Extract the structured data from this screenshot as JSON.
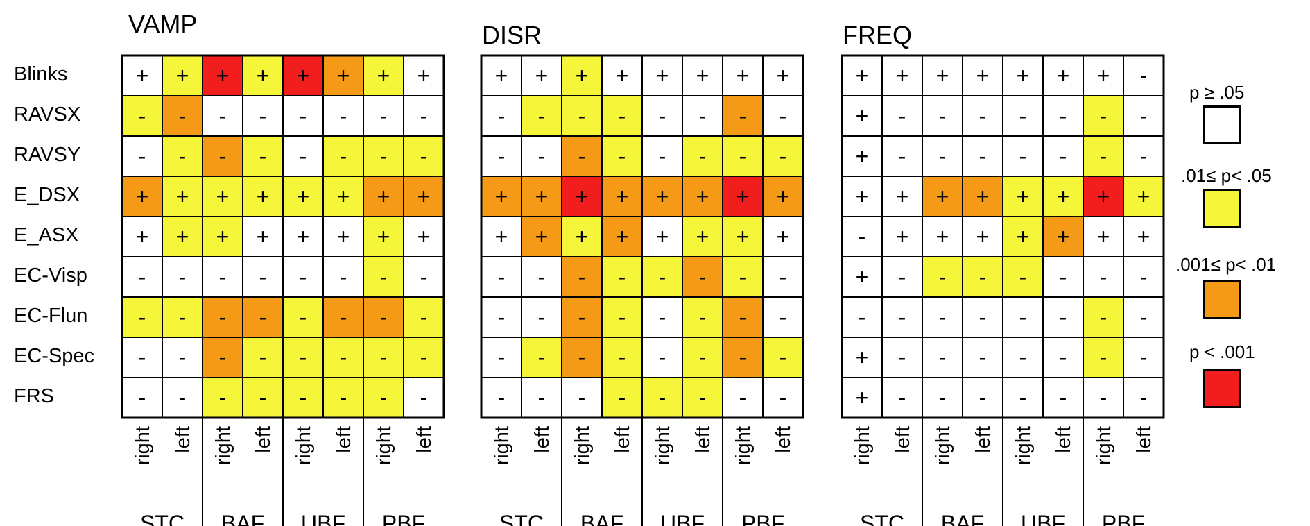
{
  "chart_data": {
    "type": "heatmap",
    "rows": [
      "Blinks",
      "RAVSX",
      "RAVSY",
      "E_DSX",
      "E_ASX",
      "EC-Visp",
      "EC-Flun",
      "EC-Spec",
      "FRS"
    ],
    "columns": [
      "right",
      "left",
      "right",
      "left",
      "right",
      "left",
      "right",
      "left"
    ],
    "column_groups": [
      "STC",
      "BAF",
      "UBF",
      "PBF"
    ],
    "significance_levels": [
      "p ≥ .05",
      ".01≤ p< .05",
      ".001≤ p< .01",
      "p < .001"
    ],
    "colors": [
      "#ffffff",
      "#f5f53a",
      "#f49a16",
      "#f21d1d"
    ],
    "panels": [
      {
        "title": "VAMP",
        "signs": [
          [
            "+",
            "+",
            "+",
            "+",
            "+",
            "+",
            "+",
            "+"
          ],
          [
            "-",
            "-",
            "-",
            "-",
            "-",
            "-",
            "-",
            "-"
          ],
          [
            "-",
            "-",
            "-",
            "-",
            "-",
            "-",
            "-",
            "-"
          ],
          [
            "+",
            "+",
            "+",
            "+",
            "+",
            "+",
            "+",
            "+"
          ],
          [
            "+",
            "+",
            "+",
            "+",
            "+",
            "+",
            "+",
            "+"
          ],
          [
            "-",
            "-",
            "-",
            "-",
            "-",
            "-",
            "-",
            "-"
          ],
          [
            "-",
            "-",
            "-",
            "-",
            "-",
            "-",
            "-",
            "-"
          ],
          [
            "-",
            "-",
            "-",
            "-",
            "-",
            "-",
            "-",
            "-"
          ],
          [
            "-",
            "-",
            "-",
            "-",
            "-",
            "-",
            "-",
            "-"
          ]
        ],
        "levels": [
          [
            0,
            1,
            3,
            1,
            3,
            2,
            1,
            0
          ],
          [
            1,
            2,
            0,
            0,
            0,
            0,
            0,
            0
          ],
          [
            0,
            1,
            2,
            1,
            0,
            1,
            1,
            1
          ],
          [
            2,
            1,
            1,
            1,
            1,
            1,
            2,
            2
          ],
          [
            0,
            1,
            1,
            0,
            0,
            0,
            1,
            0
          ],
          [
            0,
            0,
            0,
            0,
            0,
            0,
            1,
            0
          ],
          [
            1,
            1,
            2,
            2,
            1,
            2,
            2,
            1
          ],
          [
            0,
            0,
            2,
            1,
            1,
            1,
            1,
            1
          ],
          [
            0,
            0,
            1,
            1,
            1,
            1,
            1,
            0
          ]
        ]
      },
      {
        "title": "DISR",
        "signs": [
          [
            "+",
            "+",
            "+",
            "+",
            "+",
            "+",
            "+",
            "+"
          ],
          [
            "-",
            "-",
            "-",
            "-",
            "-",
            "-",
            "-",
            "-"
          ],
          [
            "-",
            "-",
            "-",
            "-",
            "-",
            "-",
            "-",
            "-"
          ],
          [
            "+",
            "+",
            "+",
            "+",
            "+",
            "+",
            "+",
            "+"
          ],
          [
            "+",
            "+",
            "+",
            "+",
            "+",
            "+",
            "+",
            "+"
          ],
          [
            "-",
            "-",
            "-",
            "-",
            "-",
            "-",
            "-",
            "-"
          ],
          [
            "-",
            "-",
            "-",
            "-",
            "-",
            "-",
            "-",
            "-"
          ],
          [
            "-",
            "-",
            "-",
            "-",
            "-",
            "-",
            "-",
            "-"
          ],
          [
            "-",
            "-",
            "-",
            "-",
            "-",
            "-",
            "-",
            "-"
          ]
        ],
        "levels": [
          [
            0,
            0,
            1,
            0,
            0,
            0,
            0,
            0
          ],
          [
            0,
            1,
            1,
            1,
            0,
            0,
            2,
            0
          ],
          [
            0,
            0,
            2,
            1,
            0,
            1,
            1,
            1
          ],
          [
            2,
            2,
            3,
            2,
            2,
            2,
            3,
            2
          ],
          [
            0,
            2,
            1,
            2,
            0,
            1,
            1,
            0
          ],
          [
            0,
            0,
            2,
            1,
            1,
            2,
            1,
            0
          ],
          [
            0,
            0,
            2,
            1,
            0,
            1,
            2,
            0
          ],
          [
            0,
            1,
            2,
            1,
            0,
            1,
            2,
            1
          ],
          [
            0,
            0,
            0,
            1,
            1,
            1,
            0,
            0
          ]
        ]
      },
      {
        "title": "FREQ",
        "signs": [
          [
            "+",
            "+",
            "+",
            "+",
            "+",
            "+",
            "+",
            "-"
          ],
          [
            "+",
            "-",
            "-",
            "-",
            "-",
            "-",
            "-",
            "-"
          ],
          [
            "+",
            "-",
            "-",
            "-",
            "-",
            "-",
            "-",
            "-"
          ],
          [
            "+",
            "+",
            "+",
            "+",
            "+",
            "+",
            "+",
            "+"
          ],
          [
            "-",
            "+",
            "+",
            "+",
            "+",
            "+",
            "+",
            "+"
          ],
          [
            "+",
            "-",
            "-",
            "-",
            "-",
            "-",
            "-",
            "-"
          ],
          [
            "-",
            "-",
            "-",
            "-",
            "-",
            "-",
            "-",
            "-"
          ],
          [
            "+",
            "-",
            "-",
            "-",
            "-",
            "-",
            "-",
            "-"
          ],
          [
            "+",
            "-",
            "-",
            "-",
            "-",
            "-",
            "-",
            "-"
          ]
        ],
        "levels": [
          [
            0,
            0,
            0,
            0,
            0,
            0,
            0,
            0
          ],
          [
            0,
            0,
            0,
            0,
            0,
            0,
            1,
            0
          ],
          [
            0,
            0,
            0,
            0,
            0,
            0,
            1,
            0
          ],
          [
            0,
            0,
            2,
            2,
            1,
            1,
            3,
            1
          ],
          [
            0,
            0,
            0,
            0,
            1,
            2,
            0,
            0
          ],
          [
            0,
            0,
            1,
            1,
            1,
            0,
            0,
            0
          ],
          [
            0,
            0,
            0,
            0,
            0,
            0,
            1,
            0
          ],
          [
            0,
            0,
            0,
            0,
            0,
            0,
            1,
            0
          ],
          [
            0,
            0,
            0,
            0,
            0,
            0,
            0,
            0
          ]
        ]
      }
    ]
  }
}
